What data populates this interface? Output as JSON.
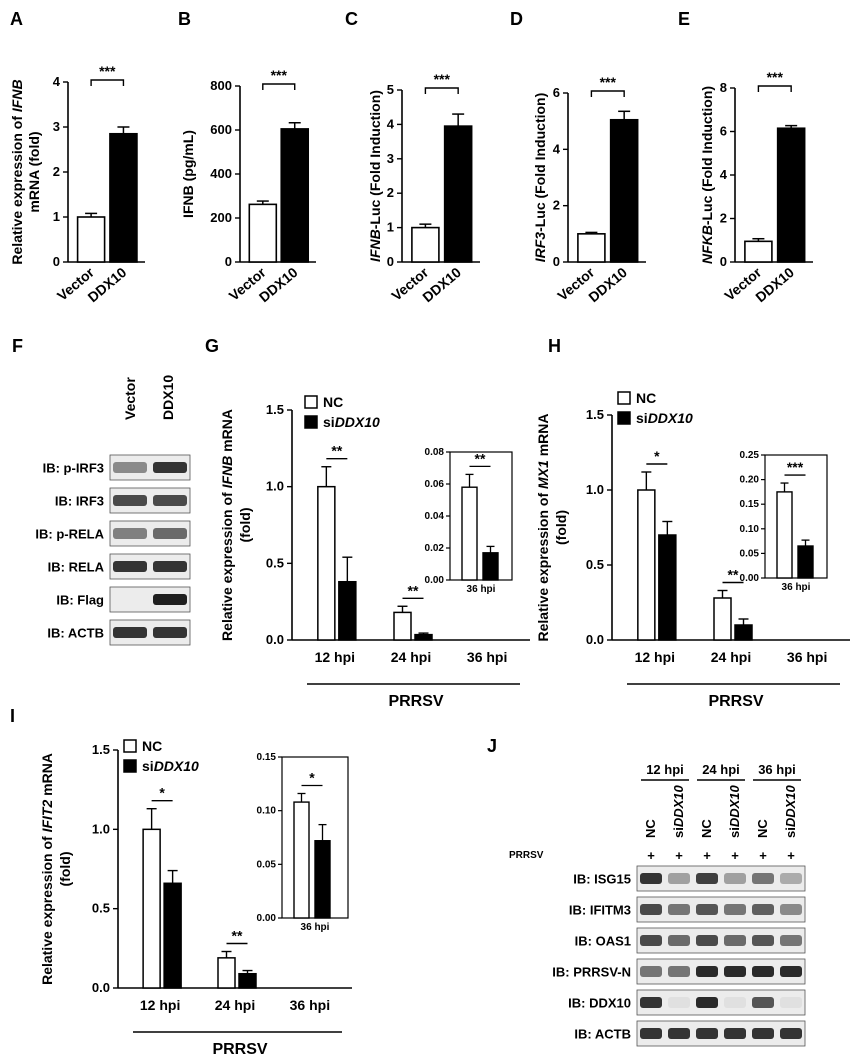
{
  "panels": {
    "A": {
      "letter": "A"
    },
    "B": {
      "letter": "B"
    },
    "C": {
      "letter": "C"
    },
    "D": {
      "letter": "D"
    },
    "E": {
      "letter": "E"
    },
    "F": {
      "letter": "F"
    },
    "G": {
      "letter": "G"
    },
    "H": {
      "letter": "H"
    },
    "I": {
      "letter": "I"
    },
    "J": {
      "letter": "J"
    }
  },
  "blotF": {
    "columns": [
      "Vector",
      "DDX10"
    ],
    "rows": [
      "IB: p-IRF3",
      "IB: IRF3",
      "IB: p-RELA",
      "IB: RELA",
      "IB: Flag",
      "IB: ACTB"
    ]
  },
  "blotJ": {
    "timepoints": [
      "12 hpi",
      "24 hpi",
      "36 hpi"
    ],
    "lanes": [
      "NC",
      "siDDX10",
      "NC",
      "siDDX10",
      "NC",
      "siDDX10"
    ],
    "prrsv_label": "PRRSV",
    "plus": "+",
    "rows": [
      "IB: ISG15",
      "IB: IFITM3",
      "IB: OAS1",
      "IB: PRRSV-N",
      "IB: DDX10",
      "IB: ACTB"
    ]
  },
  "chart_data": [
    {
      "panel": "A",
      "type": "bar",
      "categories": [
        "Vector",
        "DDX10"
      ],
      "values": [
        1.0,
        2.85
      ],
      "errors": [
        0.08,
        0.15
      ],
      "ylabel": "Relative expression of IFNB mRNA (fold)",
      "ylim": [
        0,
        4
      ],
      "yticks": [
        "0",
        "1",
        "2",
        "3",
        "4"
      ],
      "significance": "***"
    },
    {
      "panel": "B",
      "type": "bar",
      "categories": [
        "Vector",
        "DDX10"
      ],
      "values": [
        262,
        605
      ],
      "errors": [
        15,
        28
      ],
      "ylabel": "IFNB (pg/mL)",
      "ylim": [
        0,
        800
      ],
      "yticks": [
        "0",
        "200",
        "400",
        "600",
        "800"
      ],
      "significance": "***"
    },
    {
      "panel": "C",
      "type": "bar",
      "categories": [
        "Vector",
        "DDX10"
      ],
      "values": [
        1.0,
        3.95
      ],
      "errors": [
        0.1,
        0.35
      ],
      "ylabel": "IFNB-Luc (Fold Induction)",
      "ylim": [
        0,
        5
      ],
      "yticks": [
        "0",
        "1",
        "2",
        "3",
        "4",
        "5"
      ],
      "significance": "***"
    },
    {
      "panel": "D",
      "type": "bar",
      "categories": [
        "Vector",
        "DDX10"
      ],
      "values": [
        1.0,
        5.05
      ],
      "errors": [
        0.05,
        0.3
      ],
      "ylabel": "IRF3-Luc (Fold Induction)",
      "ylim": [
        0,
        6
      ],
      "yticks": [
        "0",
        "2",
        "4",
        "6"
      ],
      "significance": "***"
    },
    {
      "panel": "E",
      "type": "bar",
      "categories": [
        "Vector",
        "DDX10"
      ],
      "values": [
        0.95,
        6.15
      ],
      "errors": [
        0.12,
        0.12
      ],
      "ylabel": "NFKB-Luc (Fold Induction)",
      "ylim": [
        0,
        8
      ],
      "yticks": [
        "0",
        "2",
        "4",
        "6",
        "8"
      ],
      "significance": "***"
    },
    {
      "panel": "G",
      "type": "bar",
      "categories": [
        "12 hpi",
        "24 hpi",
        "36 hpi"
      ],
      "series": [
        {
          "name": "NC",
          "values": [
            1.0,
            0.18,
            0.058
          ],
          "errors": [
            0.13,
            0.04,
            0.008
          ]
        },
        {
          "name": "siDDX10",
          "values": [
            0.38,
            0.035,
            0.017
          ],
          "errors": [
            0.16,
            0.01,
            0.004
          ]
        }
      ],
      "ylabel": "Relative expression of IFNB mRNA (fold)",
      "ylim": [
        0,
        1.5
      ],
      "yticks": [
        "0.0",
        "0.5",
        "1.0",
        "1.5"
      ],
      "significance": [
        "**",
        "**",
        "**"
      ],
      "group_label": "PRRSV",
      "inset": {
        "label": "36 hpi",
        "ylim": [
          0,
          0.08
        ],
        "yticks": [
          "0.00",
          "0.02",
          "0.04",
          "0.06",
          "0.08"
        ]
      }
    },
    {
      "panel": "H",
      "type": "bar",
      "categories": [
        "12 hpi",
        "24 hpi",
        "36 hpi"
      ],
      "series": [
        {
          "name": "NC",
          "values": [
            1.0,
            0.28,
            0.175
          ],
          "errors": [
            0.12,
            0.05,
            0.018
          ]
        },
        {
          "name": "siDDX10",
          "values": [
            0.7,
            0.1,
            0.065
          ],
          "errors": [
            0.09,
            0.04,
            0.012
          ]
        }
      ],
      "ylabel": "Relative expression of MX1 mRNA (fold)",
      "ylim": [
        0,
        1.5
      ],
      "yticks": [
        "0.0",
        "0.5",
        "1.0",
        "1.5"
      ],
      "significance": [
        "*",
        "**",
        "***"
      ],
      "group_label": "PRRSV",
      "inset": {
        "label": "36 hpi",
        "ylim": [
          0,
          0.25
        ],
        "yticks": [
          "0.00",
          "0.05",
          "0.10",
          "0.15",
          "0.20",
          "0.25"
        ]
      }
    },
    {
      "panel": "I",
      "type": "bar",
      "categories": [
        "12 hpi",
        "24 hpi",
        "36 hpi"
      ],
      "series": [
        {
          "name": "NC",
          "values": [
            1.0,
            0.19,
            0.108
          ],
          "errors": [
            0.13,
            0.04,
            0.008
          ]
        },
        {
          "name": "siDDX10",
          "values": [
            0.66,
            0.09,
            0.072
          ],
          "errors": [
            0.08,
            0.02,
            0.015
          ]
        }
      ],
      "ylabel": "Relative expression of IFIT2 mRNA (fold)",
      "ylim": [
        0,
        1.5
      ],
      "yticks": [
        "0.0",
        "0.5",
        "1.0",
        "1.5"
      ],
      "significance": [
        "*",
        "**",
        "*"
      ],
      "group_label": "PRRSV",
      "inset": {
        "label": "36 hpi",
        "ylim": [
          0,
          0.15
        ],
        "yticks": [
          "0.00",
          "0.05",
          "0.10",
          "0.15"
        ]
      }
    }
  ]
}
